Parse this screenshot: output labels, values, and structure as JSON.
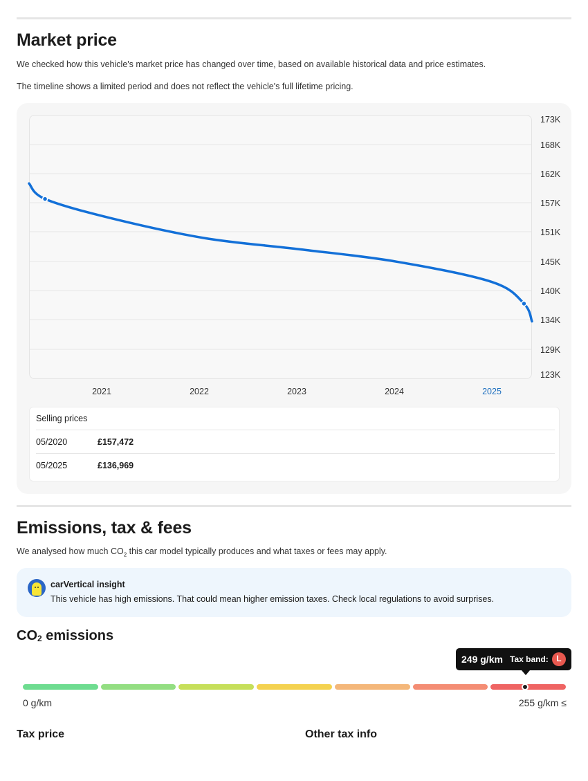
{
  "market": {
    "title": "Market price",
    "desc1": "We checked how this vehicle's market price has changed over time, based on available historical data and price estimates.",
    "desc2": "The timeline shows a limited period and does not reflect the vehicle's full lifetime pricing."
  },
  "chart_data": {
    "type": "line",
    "y_ticks": [
      "173K",
      "168K",
      "162K",
      "157K",
      "151K",
      "145K",
      "140K",
      "134K",
      "129K",
      "123K"
    ],
    "x_ticks": [
      "2021",
      "2022",
      "2023",
      "2024",
      "2025"
    ],
    "highlighted_x_tick": "2025",
    "ylim": [
      123000,
      173000
    ],
    "xlim": [
      "2020-03",
      "2025-06"
    ],
    "grid": true,
    "line_color": "#1370d8",
    "series": [
      {
        "x": [
          "2020-03",
          "2020-05",
          "2021-01",
          "2022-01",
          "2023-01",
          "2024-01",
          "2025-01",
          "2025-05",
          "2025-06"
        ],
        "values": [
          160500,
          157472,
          153800,
          149800,
          147600,
          145200,
          141200,
          136969,
          133500
        ]
      }
    ],
    "highlighted_points": [
      {
        "x": "2020-05",
        "y": 157472
      },
      {
        "x": "2025-05",
        "y": 136969
      }
    ]
  },
  "selling": {
    "title": "Selling prices",
    "rows": [
      {
        "date": "05/2020",
        "price": "£157,472"
      },
      {
        "date": "05/2025",
        "price": "£136,969"
      }
    ]
  },
  "emissions": {
    "title": "Emissions, tax & fees",
    "desc_before": "We analysed how much CO",
    "desc_sub": "2",
    "desc_after": " this car model typically produces and what taxes or fees may apply."
  },
  "insight": {
    "title": "carVertical insight",
    "text": "This vehicle has high emissions. That could mean higher emission taxes. Check local regulations to avoid surprises."
  },
  "co2": {
    "title_main": "CO",
    "title_sub": "2",
    "title_rest": " emissions",
    "value": "249 g/km",
    "value_g_km": 249,
    "tax_band_label": "Tax band:",
    "tax_band": "L",
    "range_min": "0 g/km",
    "range_max": "255 g/km ≤",
    "segment_colors": [
      "#6edc90",
      "#93de82",
      "#c6df5a",
      "#f4d250",
      "#f4b77a",
      "#f48d74",
      "#ef6463"
    ]
  },
  "tax": {
    "price_title": "Tax price",
    "other_title": "Other tax info"
  }
}
